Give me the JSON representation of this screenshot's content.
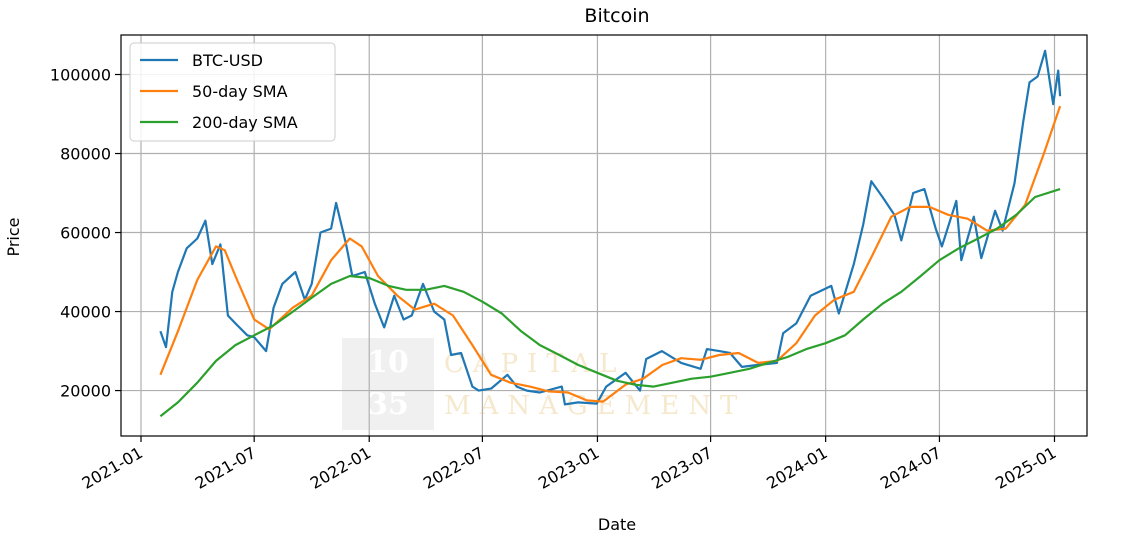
{
  "chart_data": {
    "type": "line",
    "title": "Bitcoin",
    "xlabel": "Date",
    "ylabel": "Price",
    "x_axis_type": "date",
    "xlim": [
      "2020-11-30",
      "2025-02-22"
    ],
    "ylim": [
      8500,
      110000
    ],
    "grid": true,
    "legend_placement": "top-left",
    "x_ticks": [
      "2021-01",
      "2021-07",
      "2022-01",
      "2022-07",
      "2023-01",
      "2023-07",
      "2024-01",
      "2024-07",
      "2025-01"
    ],
    "y_ticks": [
      20000,
      40000,
      60000,
      80000,
      100000
    ],
    "series": [
      {
        "name": "BTC-USD",
        "color": "#1f77b4",
        "points": [
          [
            "2021-02-01",
            35000
          ],
          [
            "2021-02-10",
            31000
          ],
          [
            "2021-02-20",
            45000
          ],
          [
            "2021-03-01",
            50000
          ],
          [
            "2021-03-15",
            56000
          ],
          [
            "2021-04-01",
            58500
          ],
          [
            "2021-04-14",
            63000
          ],
          [
            "2021-04-25",
            52000
          ],
          [
            "2021-05-08",
            57000
          ],
          [
            "2021-05-20",
            39000
          ],
          [
            "2021-06-01",
            37000
          ],
          [
            "2021-06-20",
            34000
          ],
          [
            "2021-07-01",
            33500
          ],
          [
            "2021-07-20",
            30000
          ],
          [
            "2021-08-01",
            41000
          ],
          [
            "2021-08-15",
            47000
          ],
          [
            "2021-09-05",
            50000
          ],
          [
            "2021-09-20",
            43000
          ],
          [
            "2021-10-01",
            47000
          ],
          [
            "2021-10-15",
            60000
          ],
          [
            "2021-11-01",
            61000
          ],
          [
            "2021-11-09",
            67500
          ],
          [
            "2021-11-25",
            57000
          ],
          [
            "2021-12-05",
            49000
          ],
          [
            "2021-12-25",
            50000
          ],
          [
            "2022-01-10",
            42000
          ],
          [
            "2022-01-25",
            36000
          ],
          [
            "2022-02-10",
            44000
          ],
          [
            "2022-02-25",
            38000
          ],
          [
            "2022-03-10",
            39000
          ],
          [
            "2022-03-28",
            47000
          ],
          [
            "2022-04-15",
            40000
          ],
          [
            "2022-05-01",
            38000
          ],
          [
            "2022-05-12",
            29000
          ],
          [
            "2022-05-28",
            29500
          ],
          [
            "2022-06-15",
            21000
          ],
          [
            "2022-06-25",
            20000
          ],
          [
            "2022-07-15",
            20500
          ],
          [
            "2022-08-10",
            24000
          ],
          [
            "2022-08-25",
            21000
          ],
          [
            "2022-09-10",
            20000
          ],
          [
            "2022-10-01",
            19500
          ],
          [
            "2022-11-05",
            21000
          ],
          [
            "2022-11-10",
            16500
          ],
          [
            "2022-12-01",
            17000
          ],
          [
            "2022-12-31",
            16700
          ],
          [
            "2023-01-15",
            21000
          ],
          [
            "2023-02-15",
            24500
          ],
          [
            "2023-03-10",
            20000
          ],
          [
            "2023-03-20",
            28000
          ],
          [
            "2023-04-14",
            30000
          ],
          [
            "2023-05-15",
            27000
          ],
          [
            "2023-06-15",
            25500
          ],
          [
            "2023-06-25",
            30500
          ],
          [
            "2023-07-15",
            30000
          ],
          [
            "2023-08-01",
            29500
          ],
          [
            "2023-08-20",
            26000
          ],
          [
            "2023-09-15",
            26500
          ],
          [
            "2023-10-15",
            27000
          ],
          [
            "2023-10-25",
            34500
          ],
          [
            "2023-11-15",
            37000
          ],
          [
            "2023-12-08",
            44000
          ],
          [
            "2024-01-10",
            46500
          ],
          [
            "2024-01-22",
            39500
          ],
          [
            "2024-02-15",
            52000
          ],
          [
            "2024-03-01",
            62000
          ],
          [
            "2024-03-14",
            73000
          ],
          [
            "2024-04-01",
            69000
          ],
          [
            "2024-04-20",
            64500
          ],
          [
            "2024-05-01",
            58000
          ],
          [
            "2024-05-20",
            70000
          ],
          [
            "2024-06-07",
            71000
          ],
          [
            "2024-06-25",
            61000
          ],
          [
            "2024-07-05",
            56500
          ],
          [
            "2024-07-28",
            68000
          ],
          [
            "2024-08-05",
            53000
          ],
          [
            "2024-08-25",
            64000
          ],
          [
            "2024-09-06",
            53500
          ],
          [
            "2024-09-28",
            65500
          ],
          [
            "2024-10-10",
            60500
          ],
          [
            "2024-10-29",
            72500
          ],
          [
            "2024-11-12",
            88000
          ],
          [
            "2024-11-22",
            98000
          ],
          [
            "2024-12-05",
            99500
          ],
          [
            "2024-12-17",
            106000
          ],
          [
            "2024-12-30",
            92500
          ],
          [
            "2025-01-07",
            101000
          ],
          [
            "2025-01-10",
            94500
          ]
        ]
      },
      {
        "name": "50-day SMA",
        "color": "#ff7f0e",
        "points": [
          [
            "2021-02-01",
            24000
          ],
          [
            "2021-03-01",
            35000
          ],
          [
            "2021-04-01",
            48000
          ],
          [
            "2021-05-01",
            56500
          ],
          [
            "2021-05-15",
            55500
          ],
          [
            "2021-06-01",
            49000
          ],
          [
            "2021-07-01",
            38000
          ],
          [
            "2021-07-25",
            35500
          ],
          [
            "2021-09-01",
            41000
          ],
          [
            "2021-10-01",
            44000
          ],
          [
            "2021-11-01",
            53000
          ],
          [
            "2021-12-01",
            58500
          ],
          [
            "2021-12-20",
            56500
          ],
          [
            "2022-01-15",
            49000
          ],
          [
            "2022-02-15",
            44000
          ],
          [
            "2022-03-15",
            40500
          ],
          [
            "2022-04-15",
            42000
          ],
          [
            "2022-05-15",
            39000
          ],
          [
            "2022-06-15",
            31500
          ],
          [
            "2022-07-15",
            24000
          ],
          [
            "2022-08-15",
            22000
          ],
          [
            "2022-09-15",
            21000
          ],
          [
            "2022-10-15",
            19800
          ],
          [
            "2022-11-15",
            19500
          ],
          [
            "2022-12-15",
            17500
          ],
          [
            "2023-01-10",
            17200
          ],
          [
            "2023-02-15",
            21500
          ],
          [
            "2023-03-15",
            23000
          ],
          [
            "2023-04-15",
            26500
          ],
          [
            "2023-05-15",
            28200
          ],
          [
            "2023-06-15",
            27800
          ],
          [
            "2023-07-15",
            29000
          ],
          [
            "2023-08-15",
            29500
          ],
          [
            "2023-09-15",
            27000
          ],
          [
            "2023-10-15",
            27500
          ],
          [
            "2023-11-15",
            32000
          ],
          [
            "2023-12-15",
            39000
          ],
          [
            "2024-01-15",
            43000
          ],
          [
            "2024-02-15",
            45000
          ],
          [
            "2024-03-15",
            54000
          ],
          [
            "2024-04-15",
            64000
          ],
          [
            "2024-05-15",
            66500
          ],
          [
            "2024-06-15",
            66500
          ],
          [
            "2024-07-15",
            64500
          ],
          [
            "2024-08-15",
            63500
          ],
          [
            "2024-09-15",
            60500
          ],
          [
            "2024-10-15",
            61000
          ],
          [
            "2024-11-15",
            67000
          ],
          [
            "2024-12-15",
            80000
          ],
          [
            "2025-01-10",
            92000
          ]
        ]
      },
      {
        "name": "200-day SMA",
        "color": "#2ca02c",
        "points": [
          [
            "2021-02-01",
            13500
          ],
          [
            "2021-03-01",
            17000
          ],
          [
            "2021-04-01",
            22000
          ],
          [
            "2021-05-01",
            27500
          ],
          [
            "2021-06-01",
            31500
          ],
          [
            "2021-07-01",
            34000
          ],
          [
            "2021-08-01",
            36500
          ],
          [
            "2021-09-01",
            40000
          ],
          [
            "2021-10-01",
            43500
          ],
          [
            "2021-11-01",
            47000
          ],
          [
            "2021-12-01",
            49000
          ],
          [
            "2022-01-01",
            48500
          ],
          [
            "2022-02-01",
            46500
          ],
          [
            "2022-03-01",
            45500
          ],
          [
            "2022-04-01",
            45500
          ],
          [
            "2022-05-01",
            46500
          ],
          [
            "2022-06-01",
            45000
          ],
          [
            "2022-07-01",
            42500
          ],
          [
            "2022-08-01",
            39500
          ],
          [
            "2022-09-01",
            35000
          ],
          [
            "2022-10-01",
            31500
          ],
          [
            "2022-11-01",
            29000
          ],
          [
            "2022-12-01",
            26500
          ],
          [
            "2023-01-01",
            24500
          ],
          [
            "2023-02-01",
            22500
          ],
          [
            "2023-03-01",
            21500
          ],
          [
            "2023-04-01",
            21000
          ],
          [
            "2023-05-01",
            22000
          ],
          [
            "2023-06-01",
            23000
          ],
          [
            "2023-07-01",
            23500
          ],
          [
            "2023-08-01",
            24500
          ],
          [
            "2023-09-01",
            25500
          ],
          [
            "2023-10-01",
            27000
          ],
          [
            "2023-11-01",
            28500
          ],
          [
            "2023-12-01",
            30500
          ],
          [
            "2024-01-01",
            32000
          ],
          [
            "2024-02-01",
            34000
          ],
          [
            "2024-03-01",
            38000
          ],
          [
            "2024-04-01",
            42000
          ],
          [
            "2024-05-01",
            45000
          ],
          [
            "2024-06-01",
            49000
          ],
          [
            "2024-07-01",
            53000
          ],
          [
            "2024-08-01",
            56000
          ],
          [
            "2024-09-01",
            58500
          ],
          [
            "2024-10-01",
            61000
          ],
          [
            "2024-11-01",
            64500
          ],
          [
            "2024-12-01",
            69000
          ],
          [
            "2025-01-10",
            71000
          ]
        ]
      }
    ],
    "watermark": {
      "box_line1": "10",
      "box_line2": "35",
      "word1": "CAPITAL",
      "word2": "MANAGEMENT"
    }
  }
}
